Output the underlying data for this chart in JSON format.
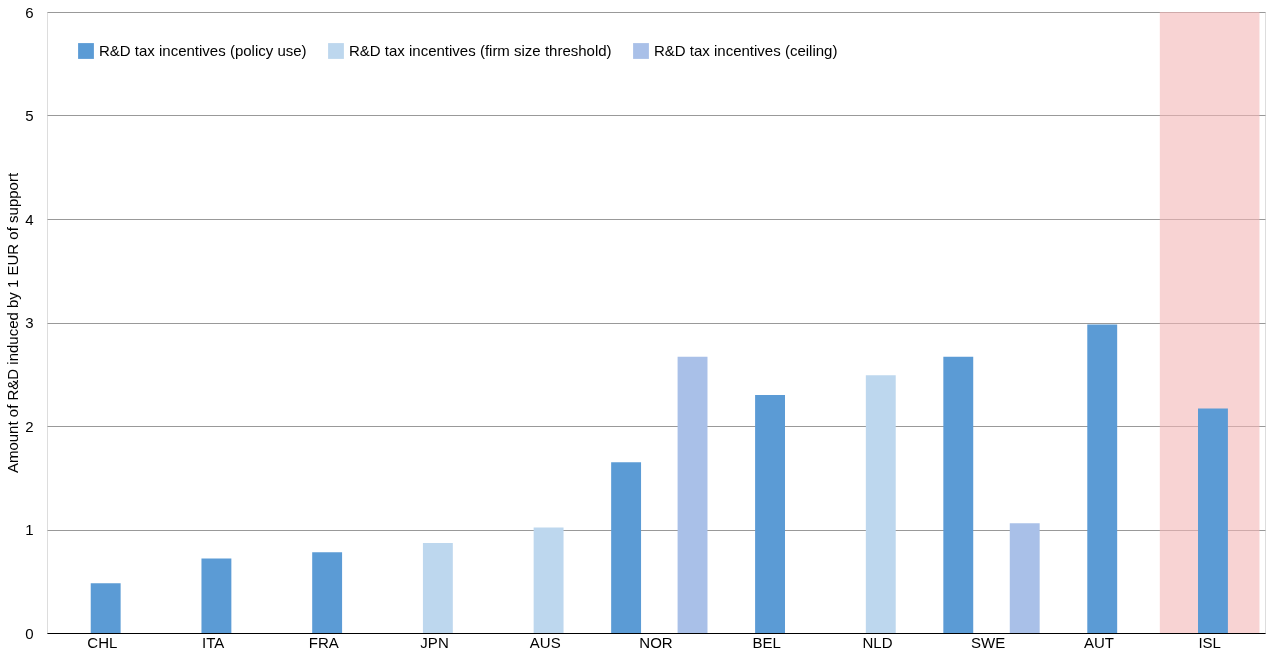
{
  "chart_data": {
    "type": "bar",
    "ylabel": "Amount of R&D induced by 1 EUR of support",
    "categories": [
      "CHL",
      "ITA",
      "FRA",
      "JPN",
      "AUS",
      "NOR",
      "BEL",
      "NLD",
      "SWE",
      "AUT",
      "ISL"
    ],
    "series": [
      {
        "name": "R&D tax incentives (policy use)",
        "color": "#5b9bd5",
        "values": [
          0.48,
          0.72,
          0.78,
          null,
          null,
          1.65,
          2.3,
          null,
          2.67,
          2.98,
          2.17
        ]
      },
      {
        "name": "R&D tax incentives (firm size threshold)",
        "color": "#bdd7ee",
        "values": [
          null,
          null,
          null,
          0.87,
          1.02,
          null,
          null,
          2.49,
          null,
          null,
          null
        ]
      },
      {
        "name": "R&D tax incentives (ceiling)",
        "color": "#a9c0e8",
        "values": [
          null,
          null,
          null,
          null,
          null,
          2.67,
          null,
          null,
          1.06,
          null,
          null
        ]
      }
    ],
    "bands": [
      {
        "axis": "x",
        "from": "ISL",
        "to": "ISL",
        "color": "#f4b6b6"
      }
    ],
    "ylim": [
      0,
      6
    ],
    "yticks": [
      0,
      1,
      2,
      3,
      4,
      5,
      6
    ],
    "grid": "y",
    "legend": "top left"
  }
}
